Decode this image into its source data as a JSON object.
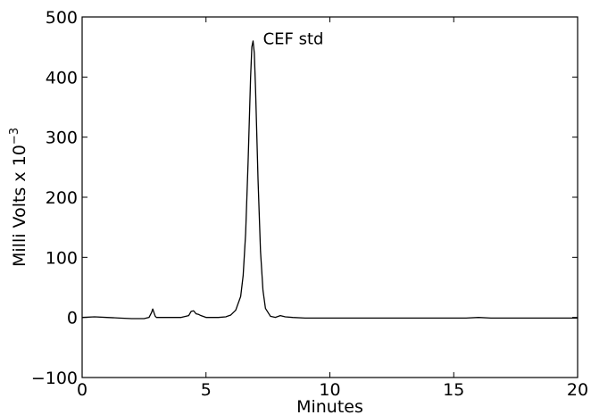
{
  "chart_data": {
    "type": "line",
    "title": "",
    "xlabel": "Minutes",
    "ylabel": "Milli Volts x 10",
    "ylabel_exponent": "−3",
    "xlim": [
      0,
      20
    ],
    "ylim": [
      -100,
      500
    ],
    "xticks": [
      0,
      5,
      10,
      15,
      20
    ],
    "yticks": [
      -100,
      0,
      100,
      200,
      300,
      400,
      500
    ],
    "xtick_labels": [
      "0",
      "5",
      "10",
      "15",
      "20"
    ],
    "ytick_labels": [
      "−100",
      "0",
      "100",
      "200",
      "300",
      "400",
      "500"
    ],
    "grid": false,
    "annotations": [
      {
        "text": "CEF std",
        "x": 7.3,
        "y": 455
      }
    ],
    "series": [
      {
        "color": "#000000",
        "x": [
          0,
          0.5,
          1.0,
          1.5,
          2.0,
          2.5,
          2.7,
          2.8,
          2.85,
          2.9,
          2.95,
          3.0,
          3.2,
          3.5,
          4.0,
          4.3,
          4.4,
          4.5,
          4.6,
          4.7,
          4.8,
          5.0,
          5.5,
          5.8,
          6.0,
          6.2,
          6.4,
          6.5,
          6.6,
          6.7,
          6.8,
          6.85,
          6.9,
          6.95,
          7.0,
          7.1,
          7.2,
          7.3,
          7.4,
          7.6,
          7.8,
          8.0,
          8.2,
          8.5,
          9.0,
          10.0,
          12.0,
          14.0,
          15.0,
          15.5,
          16.0,
          16.5,
          17.0,
          18.0,
          19.0,
          20.0
        ],
        "y": [
          0,
          1,
          0,
          -1,
          -2,
          -2,
          0,
          8,
          14,
          8,
          2,
          0,
          0,
          0,
          0,
          3,
          10,
          11,
          6,
          5,
          3,
          0,
          0,
          1,
          4,
          12,
          35,
          70,
          140,
          260,
          400,
          450,
          460,
          440,
          380,
          230,
          110,
          45,
          15,
          2,
          0,
          3,
          1,
          0,
          -1,
          -1,
          -1,
          -1,
          -1,
          -1,
          0,
          -1,
          -1,
          -1,
          -1,
          -1
        ]
      }
    ]
  }
}
